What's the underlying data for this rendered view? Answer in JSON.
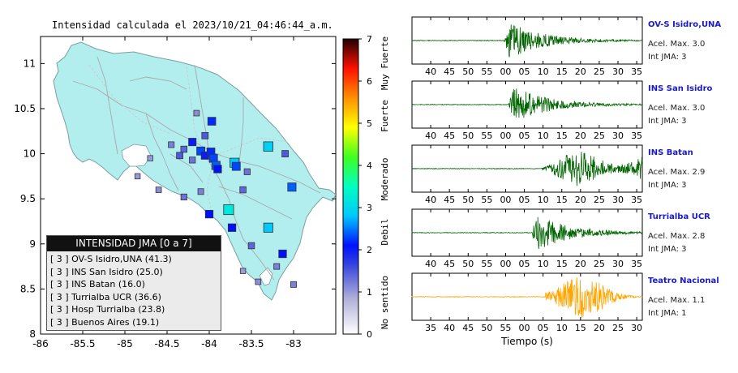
{
  "map": {
    "title": "Intensidad calculada el 2023/10/21_04:46:44_a.m.",
    "x_ticks": [
      "-86",
      "-85.5",
      "-85",
      "-84.5",
      "-84",
      "-83.5",
      "-83"
    ],
    "y_ticks": [
      "11",
      "10.5",
      "10",
      "9.5",
      "9",
      "8.5",
      "8"
    ],
    "x_range": [
      -86.0,
      -82.5
    ],
    "y_range": [
      8.0,
      11.3
    ],
    "land_color": "#b2eeee",
    "border_color": "#7aa0a0"
  },
  "colorbar": {
    "ticks": [
      "0",
      "1",
      "2",
      "3",
      "4",
      "5",
      "6",
      "7"
    ],
    "category_labels": [
      "No sentido",
      "Debil",
      "Moderado",
      "Fuerte",
      "Muy Fuerte"
    ],
    "colors": [
      "#ffffff",
      "#9090d0",
      "#0000ff",
      "#00e0ff",
      "#00ff50",
      "#ffff00",
      "#ff8000",
      "#ff0000",
      "#200000"
    ]
  },
  "legend": {
    "title": "INTENSIDAD JMA [0 a 7]",
    "entries": [
      "[ 3 ]  OV-S Isidro,UNA (41.3)",
      "[ 3 ]  INS San Isidro (25.0)",
      "[ 3 ]  INS Batan (16.0)",
      "[ 3 ]  Turrialba UCR (36.6)",
      "[ 3 ]  Hosp Turrialba (23.8)",
      "[ 3 ]  Buenos Aires (19.1)"
    ]
  },
  "waveforms": [
    {
      "name": "OV-S Isidro,UNA",
      "accel": "Acel. Max. 3.0",
      "jma": "Int JMA: 3",
      "ticks": [
        "40",
        "45",
        "50",
        "55",
        "00",
        "05",
        "10",
        "15",
        "20",
        "25",
        "30",
        "35"
      ],
      "color": "#006400",
      "onset": 0.4
    },
    {
      "name": "INS San Isidro",
      "accel": "Acel. Max. 3.0",
      "jma": "Int JMA: 3",
      "ticks": [
        "40",
        "45",
        "50",
        "55",
        "00",
        "05",
        "10",
        "15",
        "20",
        "25",
        "30",
        "35"
      ],
      "color": "#006400",
      "onset": 0.42
    },
    {
      "name": "INS Batan",
      "accel": "Acel. Max. 2.9",
      "jma": "Int JMA: 3",
      "ticks": [
        "40",
        "45",
        "50",
        "55",
        "00",
        "05",
        "10",
        "15",
        "20",
        "25",
        "30",
        "35"
      ],
      "color": "#006400",
      "onset": 0.56
    },
    {
      "name": "Turrialba UCR",
      "accel": "Acel. Max. 2.8",
      "jma": "Int JMA: 3",
      "ticks": [
        "40",
        "45",
        "50",
        "55",
        "00",
        "05",
        "10",
        "15",
        "20",
        "25",
        "30",
        "35"
      ],
      "color": "#006400",
      "onset": 0.52
    },
    {
      "name": "Teatro Nacional",
      "accel": "Acel. Max. 1.1",
      "jma": "Int JMA: 1",
      "ticks": [
        "35",
        "40",
        "45",
        "50",
        "55",
        "00",
        "05",
        "10",
        "15",
        "20",
        "25",
        "30"
      ],
      "color": "#ffa500",
      "onset": 0.58
    }
  ],
  "time_axis_label": "Tiempo (s)",
  "stations": [
    {
      "lon": -83.97,
      "lat": 10.36,
      "i": 2.2
    },
    {
      "lon": -84.1,
      "lat": 10.03,
      "i": 2.3
    },
    {
      "lon": -84.05,
      "lat": 9.98,
      "i": 2.0
    },
    {
      "lon": -83.98,
      "lat": 10.02,
      "i": 2.2
    },
    {
      "lon": -83.95,
      "lat": 9.95,
      "i": 2.3
    },
    {
      "lon": -83.92,
      "lat": 9.87,
      "i": 2.4
    },
    {
      "lon": -83.9,
      "lat": 9.83,
      "i": 2.1
    },
    {
      "lon": -83.7,
      "lat": 9.9,
      "i": 2.8
    },
    {
      "lon": -83.68,
      "lat": 9.86,
      "i": 2.3
    },
    {
      "lon": -83.77,
      "lat": 9.38,
      "i": 3.2
    },
    {
      "lon": -83.3,
      "lat": 10.08,
      "i": 2.9
    },
    {
      "lon": -83.02,
      "lat": 9.63,
      "i": 2.4
    },
    {
      "lon": -84.0,
      "lat": 9.33,
      "i": 2.1
    },
    {
      "lon": -83.73,
      "lat": 9.18,
      "i": 2.1
    },
    {
      "lon": -83.3,
      "lat": 9.18,
      "i": 2.8
    },
    {
      "lon": -83.13,
      "lat": 8.89,
      "i": 2.1
    },
    {
      "lon": -84.2,
      "lat": 10.13,
      "i": 2.0
    },
    {
      "lon": -83.6,
      "lat": 9.6,
      "i": 1.4
    },
    {
      "lon": -84.3,
      "lat": 10.05,
      "i": 1.4
    },
    {
      "lon": -84.35,
      "lat": 9.98,
      "i": 1.5
    },
    {
      "lon": -84.45,
      "lat": 10.1,
      "i": 1.2
    },
    {
      "lon": -84.2,
      "lat": 9.93,
      "i": 1.3
    },
    {
      "lon": -84.05,
      "lat": 10.2,
      "i": 1.5
    },
    {
      "lon": -83.55,
      "lat": 9.8,
      "i": 1.3
    },
    {
      "lon": -84.6,
      "lat": 9.6,
      "i": 1.1
    },
    {
      "lon": -83.1,
      "lat": 10.0,
      "i": 1.5
    },
    {
      "lon": -84.7,
      "lat": 9.95,
      "i": 1.0
    },
    {
      "lon": -84.15,
      "lat": 10.45,
      "i": 1.1
    },
    {
      "lon": -83.5,
      "lat": 8.98,
      "i": 1.4
    },
    {
      "lon": -83.2,
      "lat": 8.75,
      "i": 1.2
    },
    {
      "lon": -83.42,
      "lat": 8.58,
      "i": 1.1
    },
    {
      "lon": -83.0,
      "lat": 8.55,
      "i": 1.2
    },
    {
      "lon": -83.6,
      "lat": 8.7,
      "i": 1.0
    },
    {
      "lon": -84.3,
      "lat": 9.52,
      "i": 1.3
    },
    {
      "lon": -84.85,
      "lat": 9.75,
      "i": 1.0
    },
    {
      "lon": -84.1,
      "lat": 9.58,
      "i": 1.2
    }
  ]
}
